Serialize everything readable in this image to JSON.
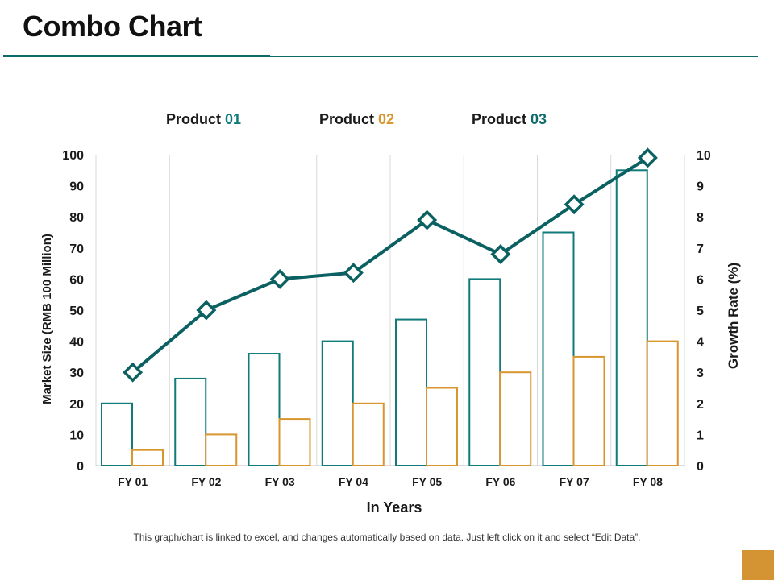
{
  "page": {
    "title": "Combo Chart",
    "footnote": "This graph/chart is linked to excel, and changes automatically based on data. Just left click on it and select “Edit Data”."
  },
  "legend": [
    {
      "label": "Product",
      "number": "01",
      "color": "#0e7a7a"
    },
    {
      "label": "Product",
      "number": "02",
      "color": "#d9962e"
    },
    {
      "label": "Product",
      "number": "03",
      "color": "#0e6b6b"
    }
  ],
  "colors": {
    "accent_teal": "#0e6b6b",
    "bar_teal": "#117a7a",
    "bar_orange": "#d9962e",
    "line": "#0b6161",
    "grid": "#d9d9d9",
    "corner_box": "#d49433"
  },
  "chart_data": {
    "type": "bar",
    "categories": [
      "FY 01",
      "FY 02",
      "FY 03",
      "FY 04",
      "FY 05",
      "FY 06",
      "FY 07",
      "FY 08"
    ],
    "series": [
      {
        "name": "Product 01",
        "kind": "bar",
        "axis": "left",
        "values": [
          20,
          28,
          36,
          40,
          47,
          60,
          75,
          95
        ]
      },
      {
        "name": "Product 02",
        "kind": "bar",
        "axis": "left",
        "values": [
          5,
          10,
          15,
          20,
          25,
          30,
          35,
          40
        ]
      },
      {
        "name": "Product 03",
        "kind": "line",
        "axis": "right",
        "values": [
          3,
          5,
          6,
          6.2,
          7.9,
          6.8,
          8.4,
          9.9
        ]
      }
    ],
    "xlabel": "In Years",
    "ylabel": "Market Size (RMB 100 Million)",
    "y2label": "Growth Rate (%)",
    "ylim": [
      0,
      100
    ],
    "y2lim": [
      0,
      10
    ],
    "yticks": [
      "0",
      "10",
      "20",
      "30",
      "40",
      "50",
      "60",
      "70",
      "80",
      "90",
      "100"
    ],
    "y2ticks": [
      "0",
      "1",
      "2",
      "3",
      "4",
      "5",
      "6",
      "7",
      "8",
      "9",
      "10"
    ],
    "grid": true
  }
}
